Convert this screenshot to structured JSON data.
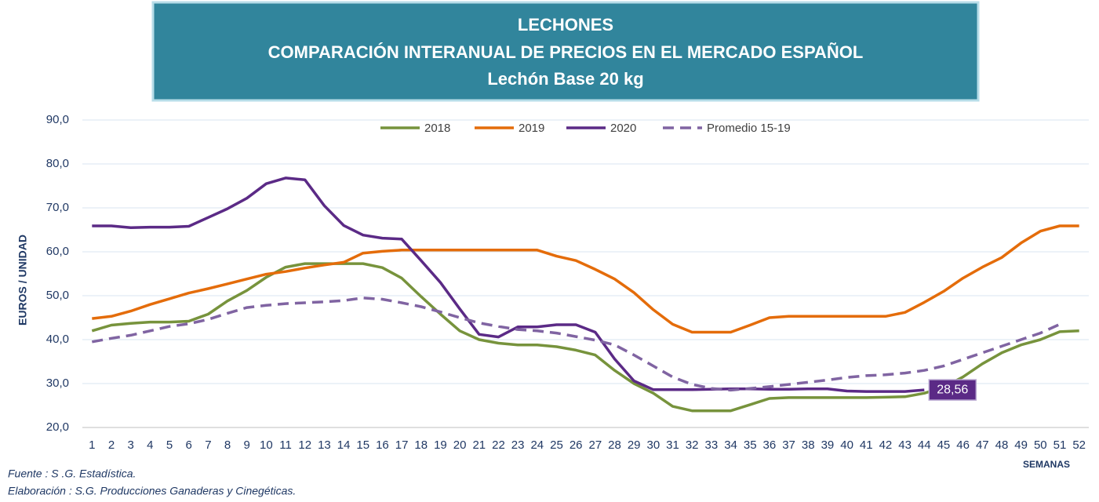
{
  "chart_data": {
    "type": "line",
    "title": [
      "LECHONES",
      "COMPARACIÓN INTERANUAL DE PRECIOS EN EL MERCADO ESPAÑOL",
      "Lechón Base 20 kg"
    ],
    "y_label": "EUROS / UNIDAD",
    "x_label": "SEMANAS",
    "footnotes": [
      "Fuente :  S .G. Estadística.",
      "Elaboración : S.G. Producciones Ganaderas y Cinegéticas."
    ],
    "categories": [
      "1",
      "2",
      "3",
      "4",
      "5",
      "6",
      "7",
      "8",
      "9",
      "10",
      "11",
      "12",
      "13",
      "14",
      "15",
      "16",
      "17",
      "18",
      "19",
      "20",
      "21",
      "22",
      "23",
      "24",
      "25",
      "26",
      "27",
      "28",
      "29",
      "30",
      "31",
      "32",
      "33",
      "34",
      "35",
      "36",
      "37",
      "38",
      "39",
      "40",
      "41",
      "42",
      "43",
      "44",
      "45",
      "46",
      "47",
      "48",
      "49",
      "50",
      "51",
      "52"
    ],
    "ylim": [
      20,
      90
    ],
    "yticks": [
      {
        "value": 20,
        "label": "20,0"
      },
      {
        "value": 30,
        "label": "30,0"
      },
      {
        "value": 40,
        "label": "40,0"
      },
      {
        "value": 50,
        "label": "50,0"
      },
      {
        "value": 60,
        "label": "60,0"
      },
      {
        "value": 70,
        "label": "70,0"
      },
      {
        "value": 80,
        "label": "80,0"
      },
      {
        "value": 90,
        "label": "90,0"
      }
    ],
    "grid": true,
    "legend": "top",
    "series": [
      {
        "name": "2018",
        "color": "#77933c",
        "dash": false,
        "values": [
          42,
          43.3,
          43.7,
          44,
          44,
          44.2,
          45.8,
          48.8,
          51.2,
          54.2,
          56.5,
          57.3,
          57.3,
          57.3,
          57.3,
          56.4,
          54,
          49.8,
          45.8,
          42,
          40,
          39.2,
          38.8,
          38.8,
          38.4,
          37.6,
          36.5,
          33,
          30,
          27.8,
          24.8,
          23.8,
          23.8,
          23.8,
          25.2,
          26.6,
          26.8,
          26.8,
          26.8,
          26.8,
          26.8,
          26.9,
          27,
          27.8,
          29.2,
          31.5,
          34.5,
          37,
          38.8,
          40,
          41.8,
          42
        ]
      },
      {
        "name": "2019",
        "color": "#e46c0a",
        "dash": false,
        "values": [
          44.8,
          45.3,
          46.5,
          48,
          49.3,
          50.6,
          51.6,
          52.7,
          53.8,
          54.9,
          55.5,
          56.3,
          57,
          57.6,
          59.7,
          60.1,
          60.4,
          60.4,
          60.4,
          60.4,
          60.4,
          60.4,
          60.4,
          60.4,
          59,
          58,
          56,
          53.8,
          50.7,
          46.8,
          43.5,
          41.7,
          41.7,
          41.7,
          43.3,
          45,
          45.3,
          45.3,
          45.3,
          45.3,
          45.3,
          45.3,
          46.2,
          48.5,
          51,
          54,
          56.5,
          58.7,
          62,
          64.7,
          65.9,
          65.9
        ]
      },
      {
        "name": "2020",
        "color": "#5b2a86",
        "dash": false,
        "values": [
          65.9,
          65.9,
          65.5,
          65.6,
          65.6,
          65.8,
          67.8,
          69.8,
          72.2,
          75.5,
          76.8,
          76.4,
          70.5,
          66,
          63.8,
          63.1,
          62.9,
          58,
          53,
          47,
          41.2,
          40.6,
          42.9,
          42.9,
          43.4,
          43.4,
          41.7,
          35.6,
          30.6,
          28.6,
          28.6,
          28.6,
          28.7,
          28.8,
          28.8,
          28.7,
          28.7,
          28.8,
          28.8,
          28.3,
          28.2,
          28.2,
          28.2,
          28.56,
          null,
          null,
          null,
          null,
          null,
          null,
          null,
          null
        ],
        "value_labels": [
          null,
          null,
          null,
          null,
          null,
          null,
          null,
          null,
          null,
          null,
          null,
          null,
          null,
          null,
          null,
          null,
          null,
          null,
          null,
          null,
          null,
          null,
          null,
          null,
          null,
          null,
          null,
          null,
          null,
          null,
          null,
          null,
          null,
          null,
          null,
          null,
          null,
          null,
          null,
          null,
          null,
          null,
          null,
          "28,56",
          null,
          null,
          null,
          null,
          null,
          null,
          null,
          null
        ]
      },
      {
        "name": "Promedio 15-19",
        "color": "#8064a2",
        "dash": true,
        "values": [
          39.5,
          40.3,
          41,
          42,
          43,
          43.6,
          44.6,
          46,
          47.3,
          47.8,
          48.2,
          48.4,
          48.6,
          48.9,
          49.5,
          49.2,
          48.4,
          47.5,
          46.3,
          45,
          43.8,
          43,
          42.3,
          42,
          41.5,
          40.7,
          39.9,
          38.8,
          36.5,
          34,
          31.5,
          29.8,
          28.9,
          28.5,
          28.9,
          29.3,
          29.8,
          30.3,
          30.8,
          31.4,
          31.8,
          32,
          32.4,
          33,
          34,
          35.5,
          37,
          38.5,
          40,
          41.5,
          43.5,
          null
        ]
      }
    ]
  }
}
